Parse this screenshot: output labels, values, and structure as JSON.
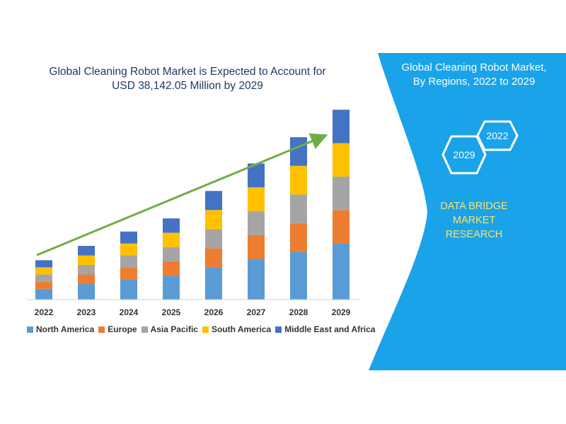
{
  "chart_data": {
    "type": "bar",
    "stacked": true,
    "title": [
      "Global Cleaning Robot Market is Expected to Account for",
      "USD 38,142.05 Million by 2029"
    ],
    "categories": [
      "2022",
      "2023",
      "2024",
      "2025",
      "2026",
      "2027",
      "2028",
      "2029"
    ],
    "series": [
      {
        "name": "North America",
        "color": "#5b9bd5",
        "values": [
          9,
          13,
          17,
          20,
          27,
          34,
          40,
          47
        ]
      },
      {
        "name": "Europe",
        "color": "#ed7d31",
        "values": [
          6,
          8,
          10,
          12,
          16,
          20,
          24,
          28
        ]
      },
      {
        "name": "Asia Pacific",
        "color": "#a5a5a5",
        "values": [
          6,
          8,
          10,
          12,
          16,
          20,
          24,
          28
        ]
      },
      {
        "name": "South America",
        "color": "#ffc000",
        "values": [
          6,
          8,
          10,
          12,
          16,
          20,
          24,
          28
        ]
      },
      {
        "name": "Middle East and Africa",
        "color": "#4472c4",
        "values": [
          6,
          8,
          10,
          12,
          16,
          20,
          24,
          28
        ]
      }
    ],
    "legend_position": "bottom",
    "grid": false,
    "trend_arrow_color": "#70ad47"
  },
  "side_panel": {
    "title": [
      "Global Cleaning Robot Market,",
      "By Regions, 2022 to 2029"
    ],
    "hexagons": [
      "2022",
      "2029"
    ],
    "brand": [
      "DATA BRIDGE MARKET",
      "RESEARCH"
    ],
    "color": "#1aa3e8",
    "accent_color": "#ffe066"
  }
}
